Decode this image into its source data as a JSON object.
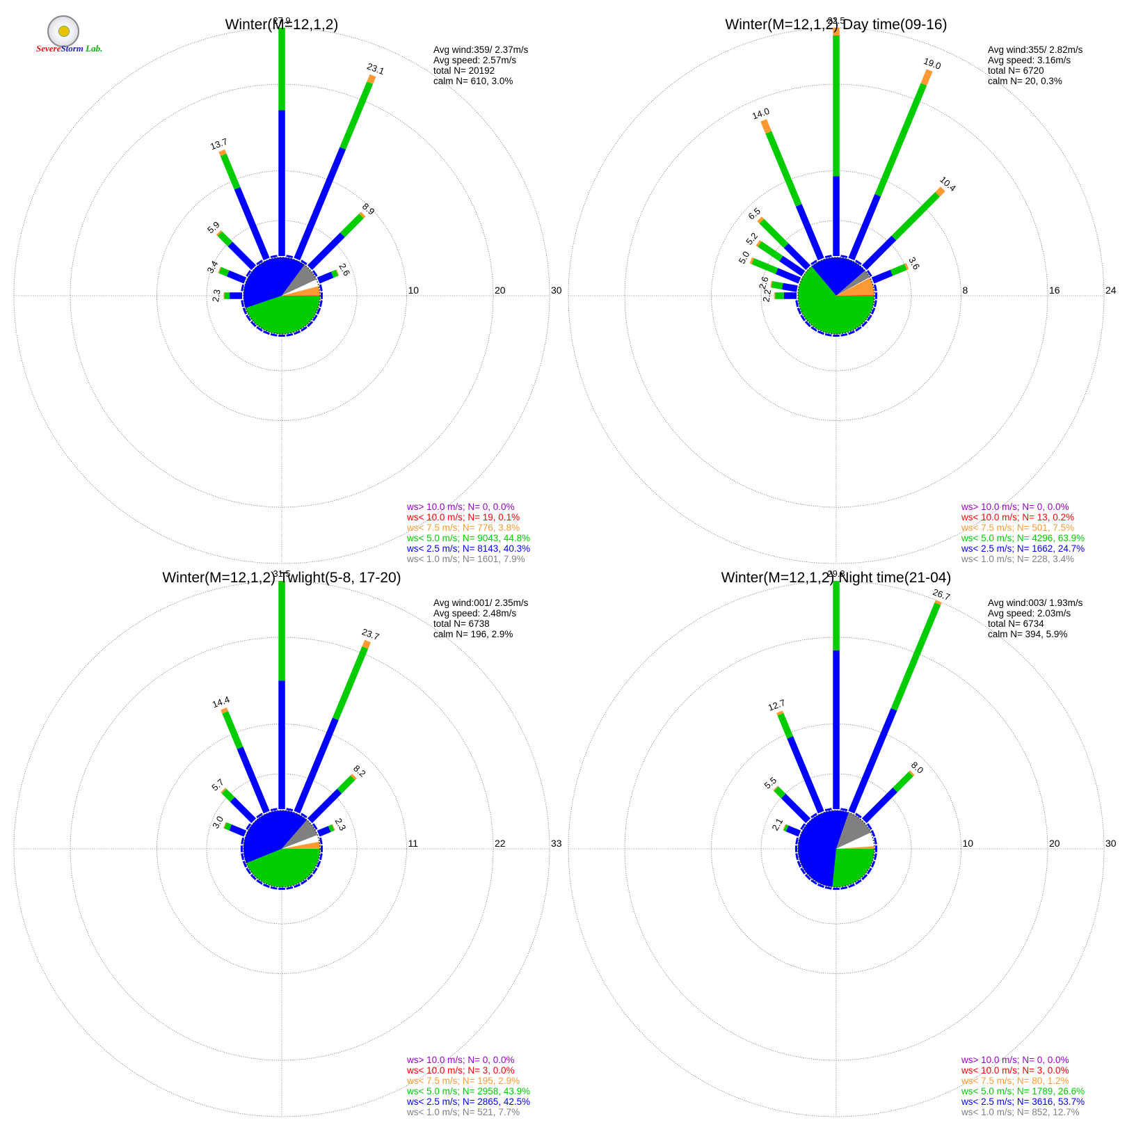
{
  "logo": {
    "word1": "Severe",
    "word2": "Storm",
    "word3": "Lab."
  },
  "legend_colors": [
    "#9900cc",
    "#ff0000",
    "#ff9933",
    "#00cc00",
    "#0000ff",
    "#808080"
  ],
  "chart_data": [
    {
      "type": "polar-bar",
      "title": "Winter(M=12,1,2)",
      "rings": [
        10,
        20,
        30
      ],
      "rmax": 30,
      "stats": [
        "Avg wind:359/ 2.37m/s",
        "Avg speed: 2.57m/s",
        "total N=       20192",
        "calm N=    610,   3.0%"
      ],
      "bars": [
        {
          "dir": 0,
          "total": 27.9,
          "blue": 17.0,
          "green": 27.0,
          "label": "27.9"
        },
        {
          "dir": 22.5,
          "total": 23.1,
          "blue": 14.0,
          "green": 22.2,
          "label": "23.1"
        },
        {
          "dir": -22.5,
          "total": 13.7,
          "blue": 9.0,
          "green": 13.2,
          "label": "13.7"
        },
        {
          "dir": 45,
          "total": 8.9,
          "blue": 5.5,
          "green": 8.6,
          "label": "8.9"
        },
        {
          "dir": -45,
          "total": 5.9,
          "blue": 4.0,
          "green": 5.7,
          "label": "5.9"
        },
        {
          "dir": -67.5,
          "total": 3.4,
          "blue": 2.3,
          "green": 3.3,
          "label": "3.4"
        },
        {
          "dir": 67.5,
          "total": 2.6,
          "blue": 1.9,
          "green": 2.5,
          "label": "2.6"
        },
        {
          "dir": -90,
          "total": 2.3,
          "blue": 1.6,
          "green": 2.2,
          "label": "2.3"
        }
      ],
      "pie": [
        {
          "color": "#00cc00",
          "pct": 44.8
        },
        {
          "color": "#0000ff",
          "pct": 40.3
        },
        {
          "color": "#808080",
          "pct": 7.9
        },
        {
          "color": "#ffffff",
          "pct": 3.0
        },
        {
          "color": "#ff9933",
          "pct": 3.8
        },
        {
          "color": "#ff0000",
          "pct": 0.1
        }
      ],
      "legend": [
        "ws> 10.0 m/s; N=     0,  0.0%",
        "ws< 10.0 m/s; N=    19,  0.1%",
        "ws<  7.5 m/s; N=   776,  3.8%",
        "ws<  5.0 m/s; N=  9043, 44.8%",
        "ws<  2.5 m/s; N=  8143, 40.3%",
        "ws<  1.0 m/s; N=  1601,  7.9%"
      ]
    },
    {
      "type": "polar-bar",
      "title": "Winter(M=12,1,2) Day time(09-16)",
      "rings": [
        8,
        16,
        24
      ],
      "rmax": 24,
      "stats": [
        "Avg wind:355/ 2.82m/s",
        "Avg speed: 3.16m/s",
        "total N=        6720",
        "calm N=     20,   0.3%"
      ],
      "bars": [
        {
          "dir": 0,
          "total": 22.5,
          "blue": 7.5,
          "green": 20.5,
          "label": "22.5"
        },
        {
          "dir": 22.5,
          "total": 19.0,
          "blue": 6.5,
          "green": 17.6,
          "label": "19.0"
        },
        {
          "dir": -22.5,
          "total": 14.0,
          "blue": 5.5,
          "green": 12.8,
          "label": "14.0"
        },
        {
          "dir": 45,
          "total": 10.4,
          "blue": 4.0,
          "green": 9.7,
          "label": "10.4"
        },
        {
          "dir": -45,
          "total": 6.5,
          "blue": 3.0,
          "green": 6.2,
          "label": "6.5"
        },
        {
          "dir": -56,
          "total": 5.2,
          "blue": 2.6,
          "green": 5.0,
          "label": "5.2"
        },
        {
          "dir": -67.5,
          "total": 5.0,
          "blue": 2.4,
          "green": 4.8,
          "label": "5.0"
        },
        {
          "dir": 67.5,
          "total": 3.6,
          "blue": 2.0,
          "green": 3.4,
          "label": "3.6"
        },
        {
          "dir": -80,
          "total": 2.6,
          "blue": 1.5,
          "green": 2.5,
          "label": "2.6"
        },
        {
          "dir": -90,
          "total": 2.2,
          "blue": 1.3,
          "green": 2.1,
          "label": "2.2"
        }
      ],
      "pie": [
        {
          "color": "#00cc00",
          "pct": 63.9
        },
        {
          "color": "#0000ff",
          "pct": 24.7
        },
        {
          "color": "#808080",
          "pct": 3.4
        },
        {
          "color": "#ffffff",
          "pct": 0.3
        },
        {
          "color": "#ff9933",
          "pct": 7.5
        },
        {
          "color": "#ff0000",
          "pct": 0.2
        }
      ],
      "legend": [
        "ws> 10.0 m/s; N=     0,  0.0%",
        "ws< 10.0 m/s; N=    13,  0.2%",
        "ws<  7.5 m/s; N=   501,  7.5%",
        "ws<  5.0 m/s; N=  4296, 63.9%",
        "ws<  2.5 m/s; N=  1662, 24.7%",
        "ws<  1.0 m/s; N=   228,  3.4%"
      ]
    },
    {
      "type": "polar-bar",
      "title": "Winter(M=12,1,2) Twlight(5-8, 17-20)",
      "rings": [
        11,
        22,
        33
      ],
      "rmax": 33,
      "stats": [
        "Avg wind:001/ 2.35m/s",
        "Avg speed: 2.48m/s",
        "total N=        6738",
        "calm N=    196,   2.9%"
      ],
      "bars": [
        {
          "dir": 0,
          "total": 31.5,
          "blue": 16.5,
          "green": 30.5,
          "label": "31.5"
        },
        {
          "dir": 22.5,
          "total": 23.7,
          "blue": 13.0,
          "green": 22.8,
          "label": "23.7"
        },
        {
          "dir": -22.5,
          "total": 14.4,
          "blue": 9.0,
          "green": 13.9,
          "label": "14.4"
        },
        {
          "dir": 45,
          "total": 8.2,
          "blue": 5.5,
          "green": 7.9,
          "label": "8.2"
        },
        {
          "dir": -45,
          "total": 5.7,
          "blue": 4.0,
          "green": 5.5,
          "label": "5.7"
        },
        {
          "dir": -67.5,
          "total": 3.0,
          "blue": 2.2,
          "green": 2.9,
          "label": "3.0"
        },
        {
          "dir": 67.5,
          "total": 2.3,
          "blue": 1.7,
          "green": 2.2,
          "label": "2.3"
        }
      ],
      "pie": [
        {
          "color": "#00cc00",
          "pct": 43.9
        },
        {
          "color": "#0000ff",
          "pct": 42.5
        },
        {
          "color": "#808080",
          "pct": 7.7
        },
        {
          "color": "#ffffff",
          "pct": 2.9
        },
        {
          "color": "#ff9933",
          "pct": 2.9
        },
        {
          "color": "#ff0000",
          "pct": 0.0
        }
      ],
      "legend": [
        "ws> 10.0 m/s; N=     0,  0.0%",
        "ws< 10.0 m/s; N=     3,  0.0%",
        "ws<  7.5 m/s; N=   195,  2.9%",
        "ws<  5.0 m/s; N=  2958, 43.9%",
        "ws<  2.5 m/s; N=  2865, 42.5%",
        "ws<  1.0 m/s; N=   521,  7.7%"
      ]
    },
    {
      "type": "polar-bar",
      "title": "Winter(M=12,1,2) Night time(21-04)",
      "rings": [
        10,
        20,
        30
      ],
      "rmax": 30,
      "stats": [
        "Avg wind:003/ 1.93m/s",
        "Avg speed: 2.03m/s",
        "total N=        6734",
        "calm N=    394,   5.9%"
      ],
      "bars": [
        {
          "dir": 0,
          "total": 29.8,
          "blue": 18.5,
          "green": 29.3,
          "label": "29.8"
        },
        {
          "dir": 22.5,
          "total": 26.7,
          "blue": 13.0,
          "green": 26.2,
          "label": "26.7"
        },
        {
          "dir": -22.5,
          "total": 12.7,
          "blue": 9.5,
          "green": 12.4,
          "label": "12.7"
        },
        {
          "dir": 45,
          "total": 8.0,
          "blue": 5.2,
          "green": 7.8,
          "label": "8.0"
        },
        {
          "dir": -45,
          "total": 5.5,
          "blue": 4.2,
          "green": 5.4,
          "label": "5.5"
        },
        {
          "dir": -67.5,
          "total": 2.1,
          "blue": 1.7,
          "green": 2.0,
          "label": "2.1"
        }
      ],
      "pie": [
        {
          "color": "#00cc00",
          "pct": 26.6
        },
        {
          "color": "#0000ff",
          "pct": 53.7
        },
        {
          "color": "#808080",
          "pct": 12.7
        },
        {
          "color": "#ffffff",
          "pct": 5.9
        },
        {
          "color": "#ff9933",
          "pct": 1.2
        },
        {
          "color": "#ff0000",
          "pct": 0.0
        }
      ],
      "legend": [
        "ws> 10.0 m/s; N=     0,  0.0%",
        "ws< 10.0 m/s; N=     3,  0.0%",
        "ws<  7.5 m/s; N=    80,  1.2%",
        "ws<  5.0 m/s; N=  1789, 26.6%",
        "ws<  2.5 m/s; N=  3616, 53.7%",
        "ws<  1.0 m/s; N=   852, 12.7%"
      ]
    }
  ]
}
